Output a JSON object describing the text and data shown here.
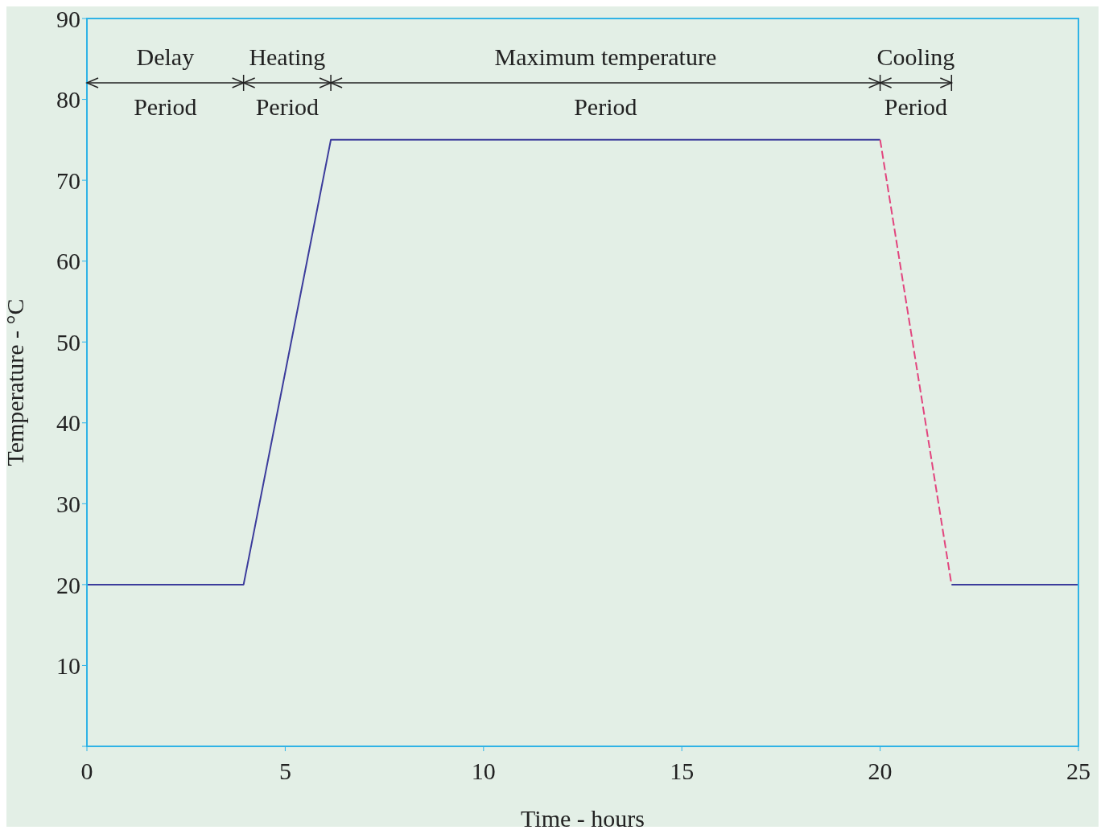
{
  "chart_data": {
    "type": "line",
    "xlabel": "Time - hours",
    "ylabel": "Temperature - °C",
    "xlim": [
      0,
      25
    ],
    "xticks": [
      0,
      5,
      10,
      15,
      20,
      25
    ],
    "ylim": [
      0,
      90
    ],
    "yticks": [
      {
        "value": 0,
        "label": null
      },
      10,
      20,
      30,
      40,
      50,
      60,
      70,
      80,
      90
    ],
    "marker": "none",
    "series": [
      {
        "color": "#3c3c9c",
        "x": [
          0,
          3.95,
          6.15,
          20
        ],
        "values": [
          20,
          20,
          75,
          75
        ],
        "line_style": "solid"
      },
      {
        "color": "#e2457e",
        "x": [
          20,
          21.8
        ],
        "values": [
          75,
          20
        ],
        "line_style": "dashed"
      },
      {
        "color": "#3c3c9c",
        "x": [
          21.8,
          25
        ],
        "values": [
          20,
          20
        ],
        "line_style": "solid"
      }
    ],
    "annotations": [
      "Delay Period",
      "Heating Period",
      "Maximum temperature Period",
      "Cooling Period"
    ]
  }
}
